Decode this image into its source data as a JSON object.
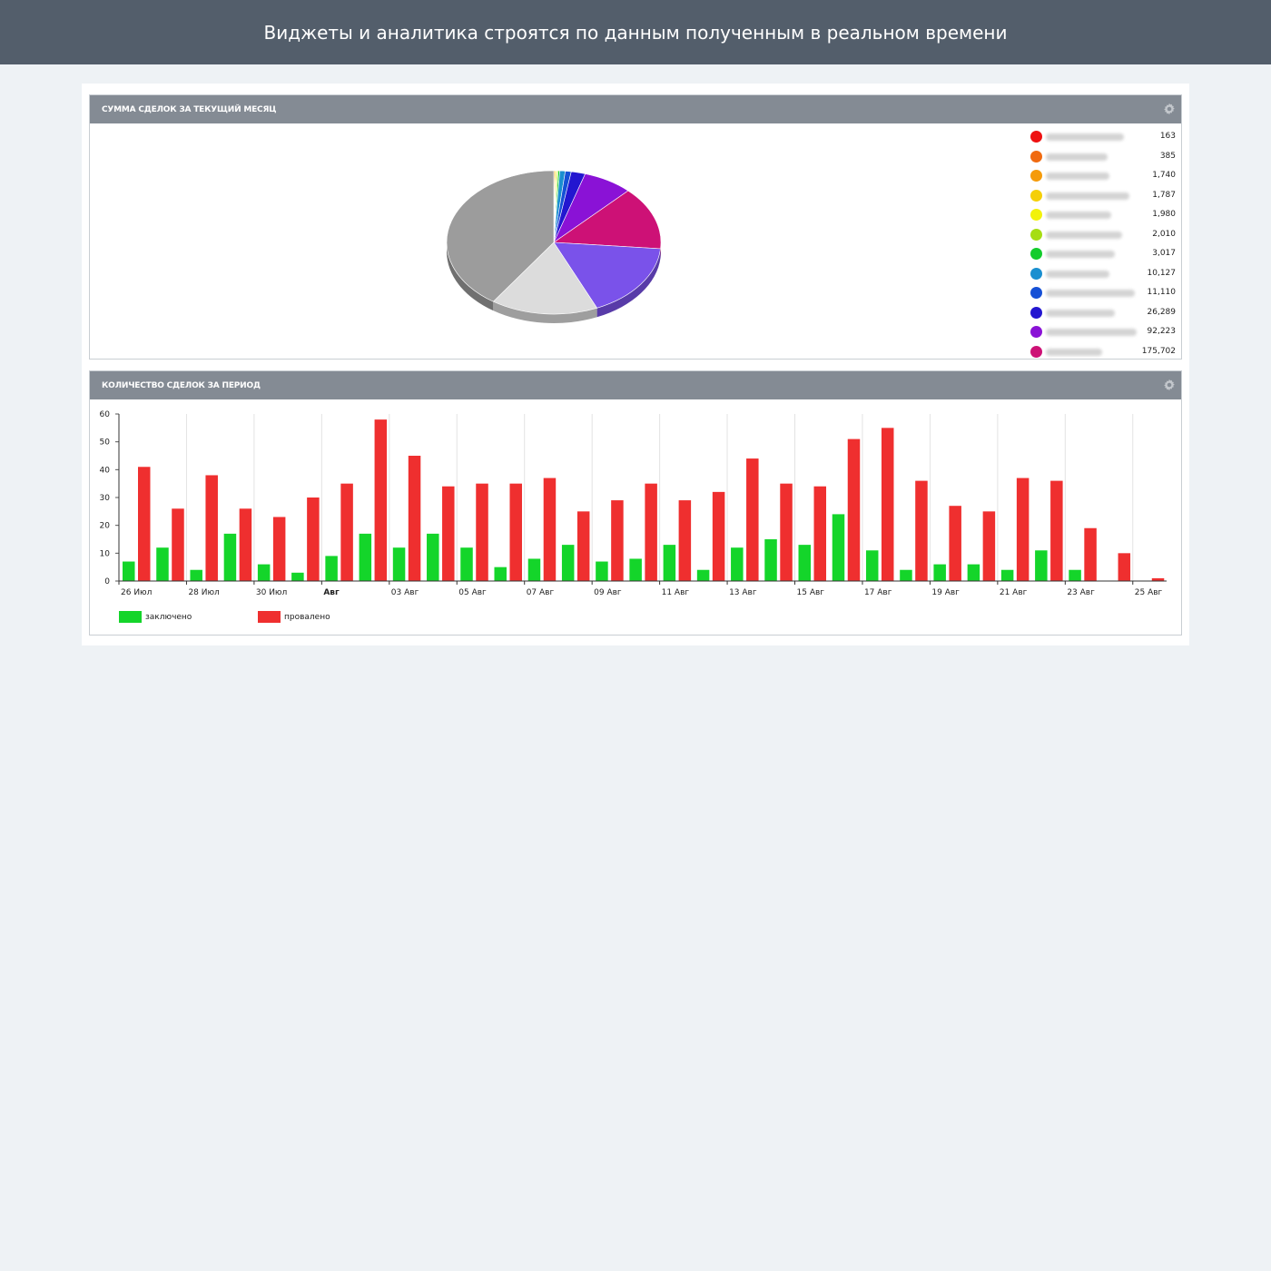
{
  "header": {
    "title": "Виджеты и аналитика строятся по данным полученным в реальном времени"
  },
  "widgets": {
    "pie": {
      "title": "СУММА СДЕЛОК ЗА ТЕКУЩИЙ МЕСЯЦ"
    },
    "bar": {
      "title": "КОЛИЧЕСТВО СДЕЛОК ЗА ПЕРИОД"
    }
  },
  "chart_data": [
    {
      "type": "pie",
      "title": "СУММА СДЕЛОК ЗА ТЕКУЩИЙ МЕСЯЦ",
      "legend_position": "right",
      "slices": [
        {
          "value": 163,
          "value_label": "163",
          "color": "#ee1111"
        },
        {
          "value": 385,
          "value_label": "385",
          "color": "#f06a10"
        },
        {
          "value": 1740,
          "value_label": "1,740",
          "color": "#f59b0a"
        },
        {
          "value": 1787,
          "value_label": "1,787",
          "color": "#f5cf08"
        },
        {
          "value": 1980,
          "value_label": "1,980",
          "color": "#f2f20a"
        },
        {
          "value": 2010,
          "value_label": "2,010",
          "color": "#a6dd12"
        },
        {
          "value": 3017,
          "value_label": "3,017",
          "color": "#13cc2c"
        },
        {
          "value": 10127,
          "value_label": "10,127",
          "color": "#1a8fd0"
        },
        {
          "value": 11110,
          "value_label": "11,110",
          "color": "#1650d6"
        },
        {
          "value": 26289,
          "value_label": "26,289",
          "color": "#2316d0"
        },
        {
          "value": 92223,
          "value_label": "92,223",
          "color": "#8a12d6"
        },
        {
          "value": 175702,
          "value_label": "175,702",
          "color": "#cd1176"
        },
        {
          "value": 210000,
          "value_label": "",
          "color": "#7a52ea"
        },
        {
          "value": 200000,
          "value_label": "",
          "color": "#dcdcdc"
        },
        {
          "value": 500000,
          "value_label": "",
          "color": "#9c9c9c"
        }
      ]
    },
    {
      "type": "bar",
      "title": "КОЛИЧЕСТВО СДЕЛОК ЗА ПЕРИОД",
      "ylim": [
        0,
        60
      ],
      "yticks": [
        0,
        10,
        20,
        30,
        40,
        50,
        60
      ],
      "grid": true,
      "legend_position": "bottom-left",
      "x_labels": [
        "26 Июл",
        "28 Июл",
        "30 Июл",
        "Авг",
        "03 Авг",
        "05 Авг",
        "07 Авг",
        "09 Авг",
        "11 Авг",
        "13 Авг",
        "15 Авг",
        "17 Авг",
        "19 Авг",
        "21 Авг",
        "23 Авг",
        "25 Авг"
      ],
      "series": [
        {
          "name": "заключено",
          "color": "#14d52a",
          "values": [
            7,
            12,
            4,
            17,
            6,
            3,
            9,
            17,
            12,
            17,
            12,
            5,
            8,
            13,
            7,
            8,
            13,
            4,
            12,
            15,
            13,
            24,
            11,
            4,
            6,
            6,
            4,
            11,
            4,
            0,
            0
          ]
        },
        {
          "name": "провалено",
          "color": "#ef2f2f",
          "values": [
            41,
            26,
            38,
            26,
            23,
            30,
            35,
            58,
            45,
            34,
            35,
            35,
            37,
            25,
            29,
            35,
            29,
            32,
            44,
            35,
            34,
            51,
            55,
            36,
            27,
            25,
            37,
            36,
            19,
            10,
            1
          ]
        }
      ]
    }
  ]
}
